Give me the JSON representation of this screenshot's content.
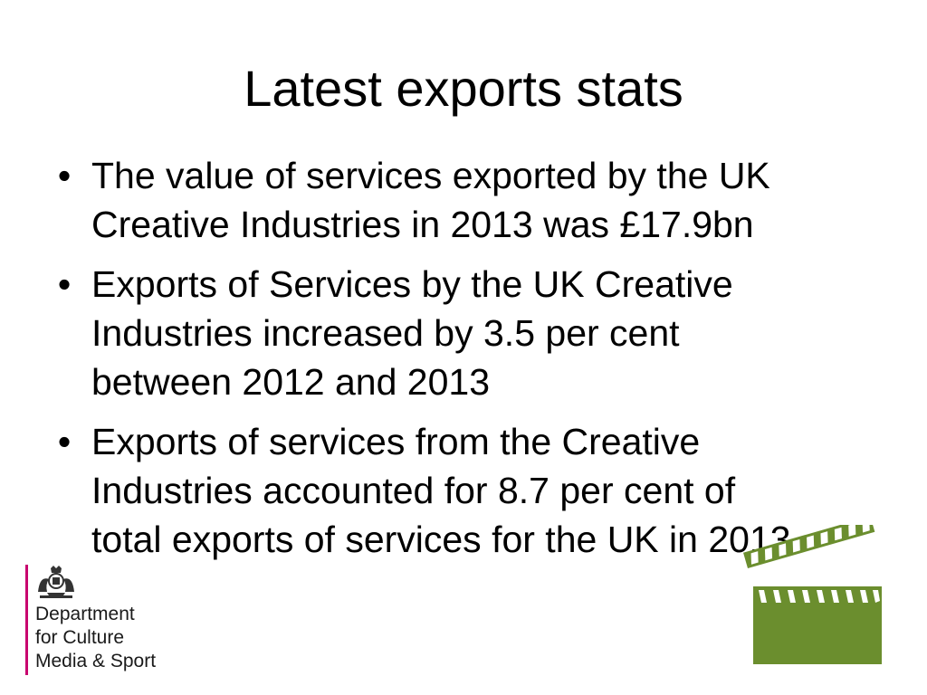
{
  "slide": {
    "title": "Latest exports stats",
    "bullets": [
      {
        "lines": [
          "The value of services exported by the UK",
          "Creative Industries in 2013 was £17.9bn"
        ]
      },
      {
        "lines": [
          "Exports of Services by the UK Creative",
          "Industries increased by 3.5 per cent",
          "between 2012 and 2013"
        ]
      },
      {
        "lines": [
          "Exports of services from the Creative",
          "Industries accounted for 8.7 per cent of",
          "total exports of services for the UK in 2013"
        ]
      }
    ],
    "bullet_symbol": "•"
  },
  "logo": {
    "lines": [
      "Department",
      "for Culture",
      "Media & Sport"
    ],
    "icon": "royal-crest-icon",
    "rule_color": "#c8006e"
  },
  "decoration": {
    "icon": "clapperboard-icon",
    "color": "#6b8e2e"
  }
}
